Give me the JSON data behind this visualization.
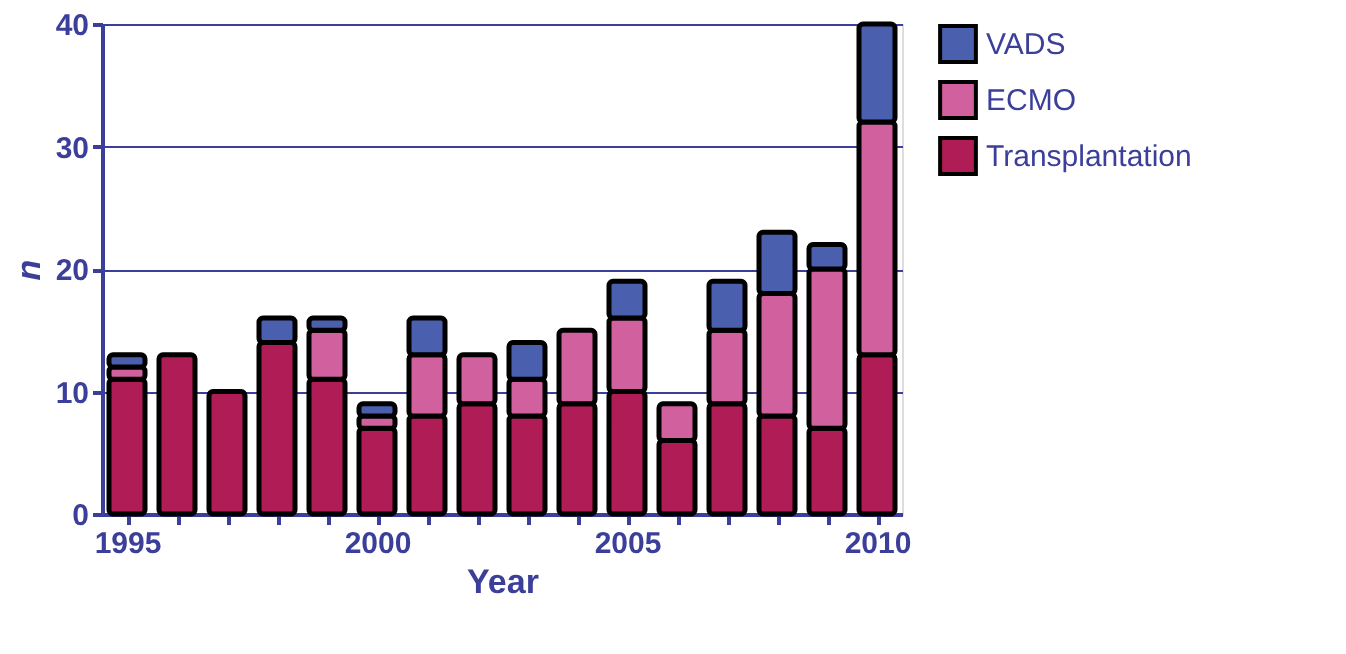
{
  "chart_data": {
    "type": "bar",
    "stacked": true,
    "xlabel": "Year",
    "ylabel": "n",
    "x": [
      1995,
      1996,
      1997,
      1998,
      1999,
      2000,
      2001,
      2002,
      2003,
      2004,
      2005,
      2006,
      2007,
      2008,
      2009,
      2010
    ],
    "series": [
      {
        "name": "Transplantation",
        "color": "#b01c55",
        "values": [
          11,
          13,
          10,
          14,
          11,
          7,
          8,
          9,
          8,
          9,
          10,
          6,
          9,
          8,
          7,
          13
        ]
      },
      {
        "name": "ECMO",
        "color": "#d0609e",
        "values": [
          1,
          0,
          0,
          0,
          4,
          1,
          5,
          4,
          3,
          6,
          6,
          3,
          6,
          10,
          13,
          19
        ]
      },
      {
        "name": "VADS",
        "color": "#4a5fae",
        "values": [
          1,
          0,
          0,
          2,
          1,
          1,
          3,
          0,
          3,
          0,
          3,
          0,
          4,
          5,
          2,
          8
        ]
      }
    ],
    "xlim": [
      1994.5,
      2010.5
    ],
    "xticks": [
      1995,
      {
        "value": 1996,
        "label": null
      },
      {
        "value": 1997,
        "label": null
      },
      {
        "value": 1998,
        "label": null
      },
      {
        "value": 1999,
        "label": null
      },
      2000,
      {
        "value": 2001,
        "label": null
      },
      {
        "value": 2002,
        "label": null
      },
      {
        "value": 2003,
        "label": null
      },
      {
        "value": 2004,
        "label": null
      },
      2005,
      {
        "value": 2006,
        "label": null
      },
      {
        "value": 2007,
        "label": null
      },
      {
        "value": 2008,
        "label": null
      },
      {
        "value": 2009,
        "label": null
      },
      2010
    ],
    "ylim": [
      0,
      40
    ],
    "yticks": [
      0,
      10,
      20,
      30,
      40
    ],
    "grid": "y",
    "legend": "top right"
  }
}
